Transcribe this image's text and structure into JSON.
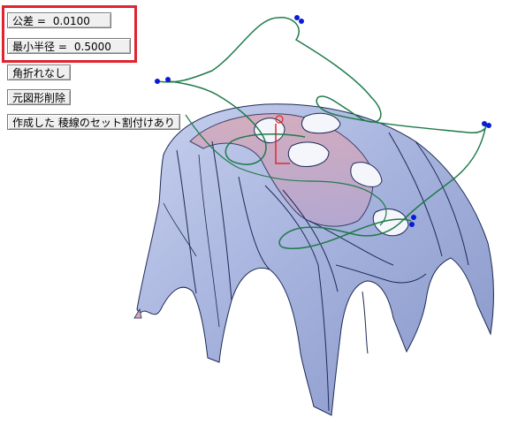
{
  "options": {
    "tolerance": {
      "label": "公差 =",
      "value": "0.0100"
    },
    "min_radius": {
      "label": "最小半径 =",
      "value": "0.5000"
    },
    "no_corner_break": {
      "label": "角折れなし"
    },
    "delete_original": {
      "label": "元図形削除"
    },
    "edge_set_assign": {
      "label": "作成した 稜線のセット割付けあり"
    }
  },
  "colors": {
    "highlight": "#e0232f",
    "surface": "#a9b6dd",
    "curve": "#1f7a4a",
    "control_point": "#0a1cd8",
    "axis_marker": "#e02a2a"
  }
}
